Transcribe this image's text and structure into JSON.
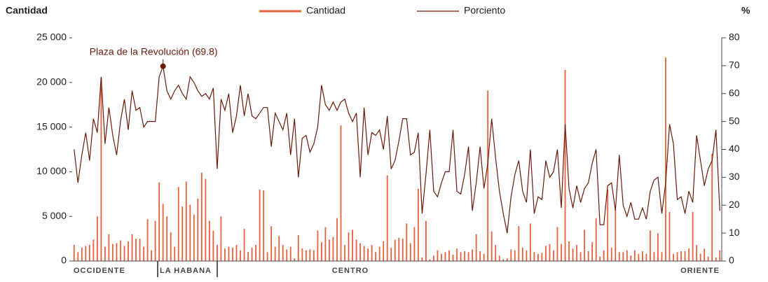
{
  "chart_data": {
    "type": "bar",
    "y_label": "Cantidad",
    "y2_label": "%",
    "annotation": "Plaza de la Revolución (69.8)",
    "regions": [
      "OCCIDENTE",
      "LA HABANA",
      "CENTRO",
      "ORIENTE"
    ],
    "categories": [
      null,
      null,
      null,
      null,
      null,
      null,
      null,
      null,
      null,
      null,
      null,
      null,
      null,
      null,
      null,
      null,
      null,
      null,
      null,
      null,
      null,
      null,
      null,
      null,
      null,
      null,
      null,
      null,
      null,
      null,
      null,
      null,
      null,
      null,
      null,
      null,
      null,
      null,
      null,
      null,
      null,
      null,
      null,
      null,
      null,
      null,
      null,
      null,
      null,
      null,
      null,
      null,
      null,
      null,
      null,
      null,
      null,
      null,
      null,
      null,
      null,
      null,
      null,
      null,
      null,
      null,
      null,
      null,
      null,
      null,
      null,
      null,
      null,
      null,
      null,
      null,
      null,
      null,
      null,
      null,
      null,
      null,
      null,
      null,
      null,
      null,
      null,
      null,
      null,
      null,
      null,
      null,
      null,
      null,
      null,
      null,
      null,
      null,
      null,
      null,
      null,
      null,
      null,
      null,
      null,
      null,
      null,
      null,
      null,
      null,
      null,
      null,
      null,
      null,
      null,
      null,
      null,
      null,
      null,
      null,
      null,
      null,
      null,
      null,
      null,
      null,
      null,
      null,
      null,
      null,
      null,
      null,
      null,
      null,
      null,
      null,
      null,
      null,
      null,
      null,
      null,
      null,
      null,
      null,
      null,
      null,
      null,
      null,
      null,
      null,
      null,
      null,
      null,
      null,
      null,
      null,
      null,
      null,
      null,
      null,
      null,
      null,
      null,
      null,
      null,
      null,
      null,
      null
    ],
    "series": [
      {
        "name": "Cantidad",
        "type": "bar",
        "color": "#e8603c",
        "values": [
          1800,
          1000,
          1500,
          1700,
          1800,
          2400,
          5000,
          20500,
          1600,
          3000,
          1900,
          2000,
          2300,
          1700,
          2200,
          3000,
          2500,
          2500,
          1600,
          4700,
          1200,
          4500,
          8800,
          6400,
          5000,
          3200,
          1600,
          8300,
          6100,
          8900,
          6300,
          5200,
          7000,
          9900,
          9200,
          4500,
          3400,
          1800,
          5000,
          1400,
          1600,
          1500,
          1800,
          1200,
          3600,
          1000,
          1500,
          1800,
          8000,
          7900,
          1000,
          3900,
          1600,
          2800,
          1800,
          1300,
          1600,
          300,
          2900,
          1400,
          1200,
          1300,
          1200,
          3400,
          2100,
          3800,
          2400,
          2700,
          4800,
          15200,
          1800,
          3200,
          3500,
          2400,
          2000,
          1700,
          1400,
          1800,
          1000,
          1600,
          2200,
          9600,
          1500,
          2400,
          2600,
          2500,
          4200,
          2000,
          3800,
          8100,
          400,
          4500,
          200,
          600,
          1200,
          800,
          1000,
          1200,
          700,
          1400,
          1000,
          1100,
          1000,
          1300,
          3000,
          1100,
          800,
          19100,
          3300,
          1800,
          600,
          200,
          300,
          1300,
          1200,
          3900,
          1500,
          1200,
          4200,
          1000,
          800,
          900,
          1700,
          1900,
          1200,
          3800,
          1900,
          21400,
          2200,
          1400,
          1800,
          1000,
          3500,
          1100,
          2100,
          4800,
          500,
          1200,
          8000,
          1500,
          5800,
          1000,
          1000,
          1200,
          600,
          1200,
          800,
          1100,
          800,
          3400,
          1000,
          3100,
          1000,
          22800,
          5500,
          800,
          1000,
          1100,
          1100,
          1400,
          5500,
          1800,
          800,
          1400,
          500,
          12000,
          400,
          1200
        ]
      },
      {
        "name": "Porciento",
        "type": "line",
        "axis": "y2",
        "color": "#6b1a0a",
        "values": [
          40,
          28,
          38,
          46,
          36,
          51,
          46,
          66,
          42,
          55,
          45,
          38,
          50,
          58,
          47,
          61,
          54,
          55,
          48,
          50,
          50,
          50,
          66,
          69.8,
          61,
          58,
          61,
          63,
          60,
          58,
          66,
          64,
          61,
          59,
          60,
          58,
          62,
          33,
          58,
          54,
          60,
          46,
          52,
          63,
          52,
          60,
          52,
          51,
          53,
          55,
          55,
          41,
          53,
          50,
          47,
          53,
          38,
          51,
          30,
          44,
          45,
          39,
          42,
          48,
          63,
          56,
          54,
          57,
          54,
          57,
          58,
          53,
          50,
          53,
          30,
          55,
          38,
          46,
          45,
          47,
          40,
          52,
          33,
          36,
          43,
          51,
          51,
          38,
          39,
          46,
          17,
          31,
          47,
          25,
          23,
          28,
          32,
          32,
          47,
          25,
          24,
          31,
          41,
          18,
          28,
          41,
          26,
          35,
          51,
          37,
          25,
          17,
          10,
          23,
          31,
          36,
          25,
          21,
          40,
          17,
          23,
          22,
          36,
          30,
          32,
          40,
          19,
          49,
          26,
          19,
          27,
          21,
          26,
          28,
          35,
          40,
          13,
          13,
          27,
          28,
          18,
          38,
          20,
          16,
          21,
          15,
          15,
          19,
          15,
          25,
          29,
          30,
          17,
          28,
          49,
          42,
          22,
          23,
          17,
          25,
          21,
          45,
          36,
          27,
          33,
          36,
          47,
          18
        ]
      }
    ],
    "ylim": [
      0,
      25000
    ],
    "yticks": [
      0,
      {
        "value": 5000,
        "label": "5 000"
      },
      {
        "value": 10000,
        "label": "10 000"
      },
      {
        "value": 15000,
        "label": "15 000"
      },
      {
        "value": 20000,
        "label": "20 000"
      },
      {
        "value": 25000,
        "label": "25 000"
      }
    ],
    "y2lim": [
      0,
      80
    ],
    "y2ticks": [
      0,
      10,
      20,
      30,
      40,
      50,
      60,
      70,
      80
    ]
  }
}
